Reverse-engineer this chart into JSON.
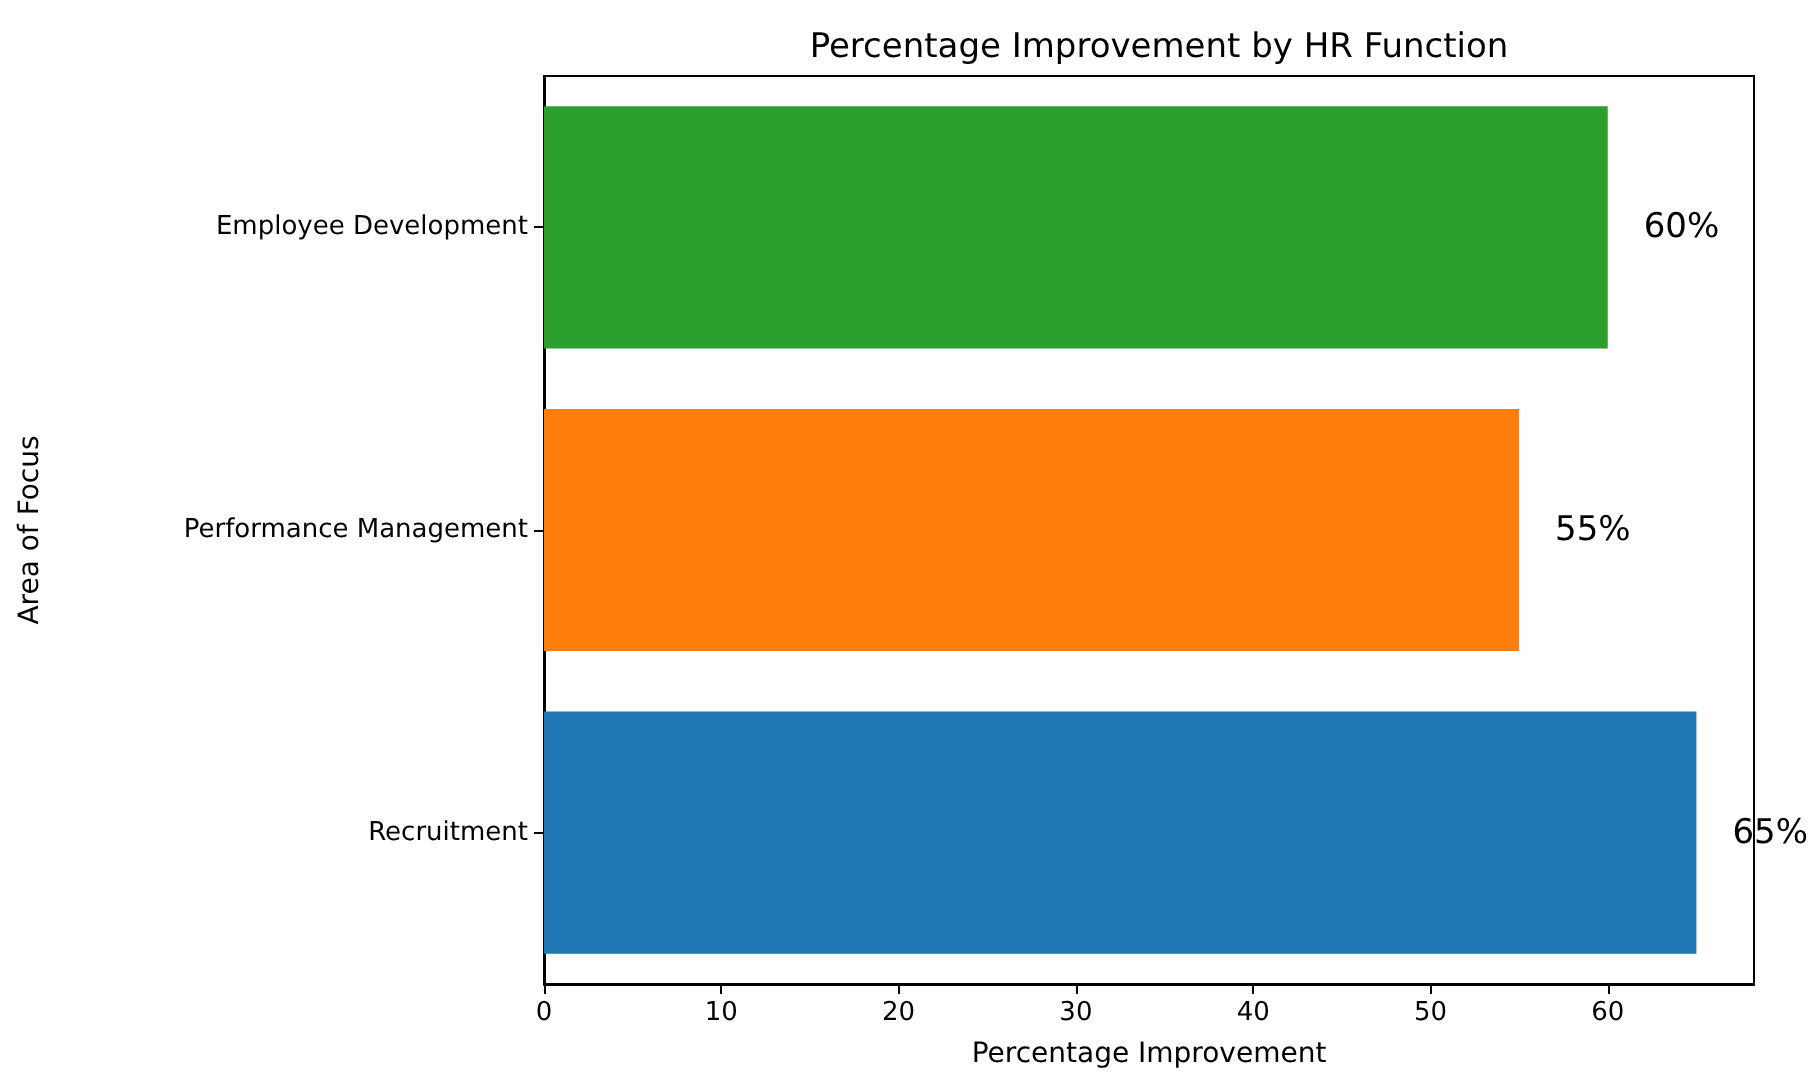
{
  "chart_data": {
    "type": "bar",
    "orientation": "horizontal",
    "title": "Percentage Improvement by HR Function",
    "xlabel": "Percentage Improvement",
    "ylabel": "Area of Focus",
    "categories": [
      "Employee Development",
      "Performance Management",
      "Recruitment"
    ],
    "values": [
      60,
      55,
      65
    ],
    "colors": [
      "#2ca02c",
      "#ff7f0e",
      "#1f77b4"
    ],
    "value_labels": [
      "60%",
      "55%",
      "65%"
    ],
    "xlim": [
      0,
      68.25
    ],
    "xticks": [
      0,
      10,
      20,
      30,
      40,
      50,
      60
    ],
    "grid": false
  }
}
